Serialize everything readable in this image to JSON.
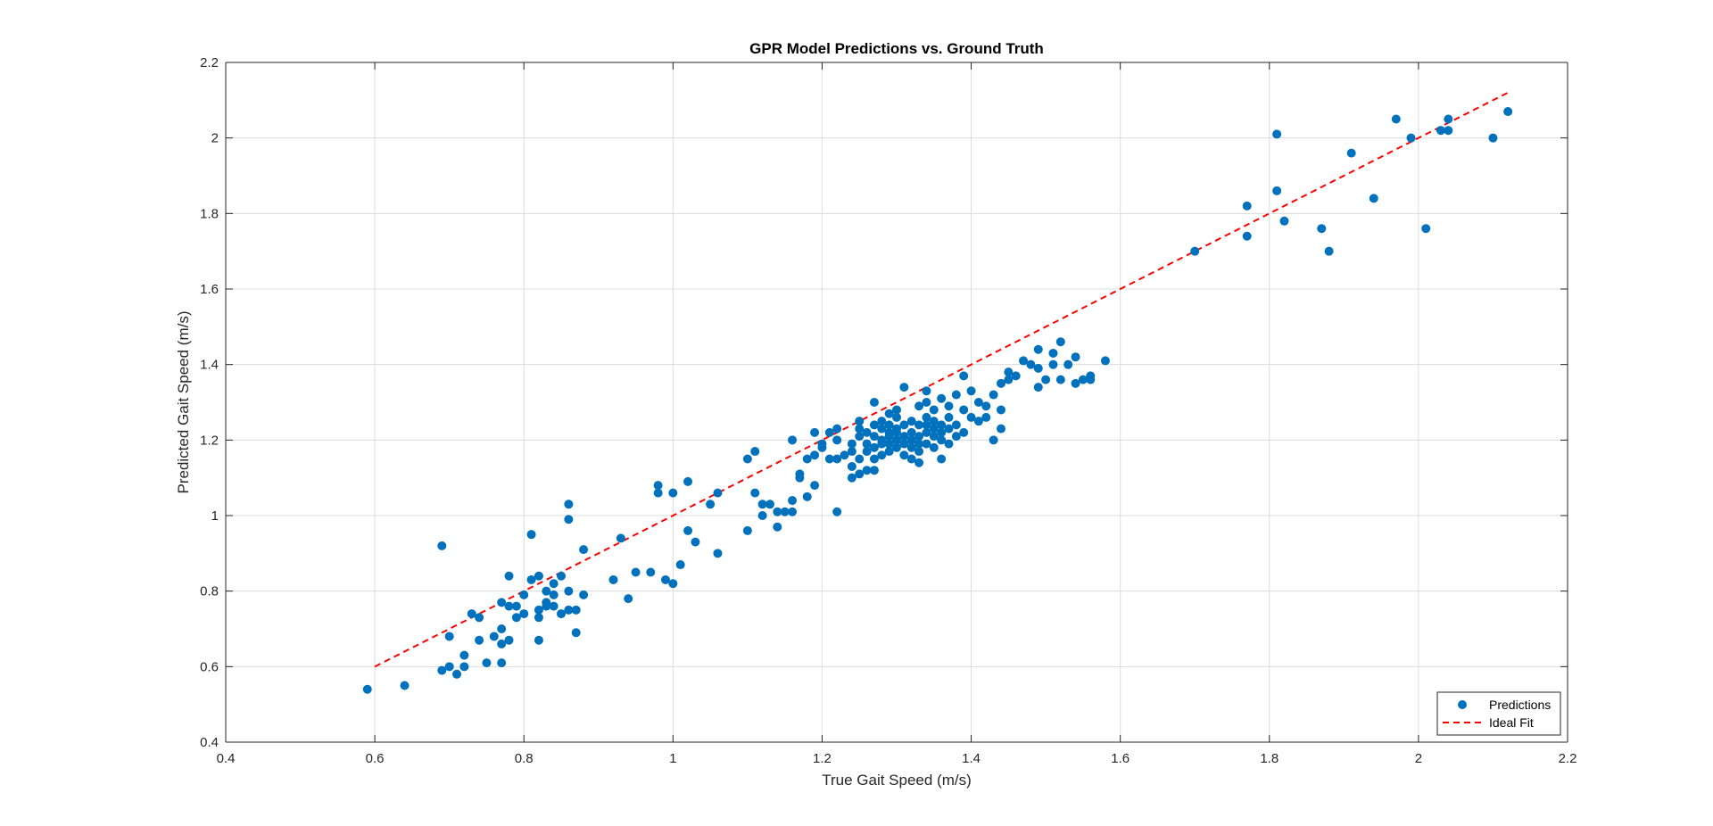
{
  "chart_data": {
    "type": "scatter",
    "title": "GPR Model Predictions vs. Ground Truth",
    "xlabel": "True Gait Speed (m/s)",
    "ylabel": "Predicted Gait Speed (m/s)",
    "xlim": [
      0.4,
      2.2
    ],
    "ylim": [
      0.4,
      2.2
    ],
    "xticks": [
      0.4,
      0.6,
      0.8,
      1,
      1.2,
      1.4,
      1.6,
      1.8,
      2,
      2.2
    ],
    "yticks": [
      0.4,
      0.6,
      0.8,
      1,
      1.2,
      1.4,
      1.6,
      1.8,
      2,
      2.2
    ],
    "xtick_labels": [
      "0.4",
      "0.6",
      "0.8",
      "1",
      "1.2",
      "1.4",
      "1.6",
      "1.8",
      "2",
      "2.2"
    ],
    "ytick_labels": [
      "0.4",
      "0.6",
      "0.8",
      "1",
      "1.2",
      "1.4",
      "1.6",
      "1.8",
      "2",
      "2.2"
    ],
    "grid": true,
    "legend_position": "bottom-right",
    "colors": {
      "predictions": "#0072BD",
      "ideal_fit": "#FF0000",
      "grid": "#dcdcdc",
      "axis": "#262626"
    },
    "series": [
      {
        "name": "Predictions",
        "style": "marker",
        "points": [
          [
            0.59,
            0.54
          ],
          [
            0.64,
            0.55
          ],
          [
            0.69,
            0.59
          ],
          [
            0.69,
            0.92
          ],
          [
            0.7,
            0.6
          ],
          [
            0.7,
            0.68
          ],
          [
            0.71,
            0.58
          ],
          [
            0.72,
            0.6
          ],
          [
            0.72,
            0.63
          ],
          [
            0.73,
            0.74
          ],
          [
            0.74,
            0.67
          ],
          [
            0.74,
            0.73
          ],
          [
            0.75,
            0.61
          ],
          [
            0.76,
            0.68
          ],
          [
            0.77,
            0.61
          ],
          [
            0.77,
            0.66
          ],
          [
            0.77,
            0.7
          ],
          [
            0.77,
            0.77
          ],
          [
            0.78,
            0.67
          ],
          [
            0.78,
            0.76
          ],
          [
            0.78,
            0.84
          ],
          [
            0.79,
            0.73
          ],
          [
            0.79,
            0.76
          ],
          [
            0.8,
            0.74
          ],
          [
            0.8,
            0.79
          ],
          [
            0.81,
            0.95
          ],
          [
            0.81,
            0.83
          ],
          [
            0.82,
            0.67
          ],
          [
            0.82,
            0.73
          ],
          [
            0.82,
            0.75
          ],
          [
            0.82,
            0.84
          ],
          [
            0.83,
            0.77
          ],
          [
            0.83,
            0.8
          ],
          [
            0.83,
            0.76
          ],
          [
            0.84,
            0.76
          ],
          [
            0.84,
            0.79
          ],
          [
            0.84,
            0.82
          ],
          [
            0.85,
            0.74
          ],
          [
            0.85,
            0.84
          ],
          [
            0.86,
            0.75
          ],
          [
            0.86,
            0.8
          ],
          [
            0.86,
            1.03
          ],
          [
            0.86,
            0.99
          ],
          [
            0.87,
            0.69
          ],
          [
            0.87,
            0.75
          ],
          [
            0.88,
            0.79
          ],
          [
            0.88,
            0.91
          ],
          [
            0.92,
            0.83
          ],
          [
            0.93,
            0.94
          ],
          [
            0.94,
            0.78
          ],
          [
            0.95,
            0.85
          ],
          [
            0.97,
            0.85
          ],
          [
            0.98,
            1.06
          ],
          [
            0.98,
            1.08
          ],
          [
            0.99,
            0.83
          ],
          [
            1.0,
            0.82
          ],
          [
            1.0,
            1.06
          ],
          [
            1.01,
            0.87
          ],
          [
            1.02,
            0.96
          ],
          [
            1.02,
            1.09
          ],
          [
            1.03,
            0.93
          ],
          [
            1.05,
            1.03
          ],
          [
            1.06,
            0.9
          ],
          [
            1.06,
            1.06
          ],
          [
            1.1,
            0.96
          ],
          [
            1.1,
            1.15
          ],
          [
            1.11,
            1.06
          ],
          [
            1.11,
            1.17
          ],
          [
            1.12,
            1.0
          ],
          [
            1.12,
            1.03
          ],
          [
            1.13,
            1.03
          ],
          [
            1.14,
            0.97
          ],
          [
            1.14,
            1.01
          ],
          [
            1.15,
            1.01
          ],
          [
            1.16,
            1.01
          ],
          [
            1.16,
            1.04
          ],
          [
            1.16,
            1.2
          ],
          [
            1.17,
            1.1
          ],
          [
            1.17,
            1.11
          ],
          [
            1.18,
            1.05
          ],
          [
            1.18,
            1.15
          ],
          [
            1.19,
            1.08
          ],
          [
            1.19,
            1.16
          ],
          [
            1.19,
            1.22
          ],
          [
            1.2,
            1.18
          ],
          [
            1.2,
            1.19
          ],
          [
            1.21,
            1.15
          ],
          [
            1.21,
            1.22
          ],
          [
            1.22,
            1.01
          ],
          [
            1.22,
            1.15
          ],
          [
            1.22,
            1.2
          ],
          [
            1.22,
            1.23
          ],
          [
            1.23,
            1.16
          ],
          [
            1.24,
            1.1
          ],
          [
            1.24,
            1.13
          ],
          [
            1.24,
            1.17
          ],
          [
            1.24,
            1.19
          ],
          [
            1.25,
            1.11
          ],
          [
            1.25,
            1.15
          ],
          [
            1.25,
            1.21
          ],
          [
            1.25,
            1.23
          ],
          [
            1.25,
            1.25
          ],
          [
            1.26,
            1.12
          ],
          [
            1.26,
            1.17
          ],
          [
            1.26,
            1.19
          ],
          [
            1.26,
            1.22
          ],
          [
            1.27,
            1.12
          ],
          [
            1.27,
            1.15
          ],
          [
            1.27,
            1.18
          ],
          [
            1.27,
            1.21
          ],
          [
            1.27,
            1.24
          ],
          [
            1.27,
            1.3
          ],
          [
            1.28,
            1.16
          ],
          [
            1.28,
            1.19
          ],
          [
            1.28,
            1.2
          ],
          [
            1.28,
            1.23
          ],
          [
            1.28,
            1.25
          ],
          [
            1.29,
            1.17
          ],
          [
            1.29,
            1.19
          ],
          [
            1.29,
            1.21
          ],
          [
            1.29,
            1.22
          ],
          [
            1.29,
            1.24
          ],
          [
            1.29,
            1.27
          ],
          [
            1.3,
            1.18
          ],
          [
            1.3,
            1.2
          ],
          [
            1.3,
            1.22
          ],
          [
            1.3,
            1.23
          ],
          [
            1.3,
            1.26
          ],
          [
            1.3,
            1.28
          ],
          [
            1.31,
            1.16
          ],
          [
            1.31,
            1.19
          ],
          [
            1.31,
            1.21
          ],
          [
            1.31,
            1.24
          ],
          [
            1.31,
            1.34
          ],
          [
            1.32,
            1.15
          ],
          [
            1.32,
            1.18
          ],
          [
            1.32,
            1.2
          ],
          [
            1.32,
            1.22
          ],
          [
            1.32,
            1.25
          ],
          [
            1.33,
            1.14
          ],
          [
            1.33,
            1.17
          ],
          [
            1.33,
            1.19
          ],
          [
            1.33,
            1.21
          ],
          [
            1.33,
            1.24
          ],
          [
            1.33,
            1.29
          ],
          [
            1.34,
            1.19
          ],
          [
            1.34,
            1.22
          ],
          [
            1.34,
            1.24
          ],
          [
            1.34,
            1.26
          ],
          [
            1.34,
            1.3
          ],
          [
            1.34,
            1.33
          ],
          [
            1.35,
            1.18
          ],
          [
            1.35,
            1.21
          ],
          [
            1.35,
            1.23
          ],
          [
            1.35,
            1.25
          ],
          [
            1.35,
            1.28
          ],
          [
            1.36,
            1.15
          ],
          [
            1.36,
            1.2
          ],
          [
            1.36,
            1.22
          ],
          [
            1.36,
            1.24
          ],
          [
            1.36,
            1.31
          ],
          [
            1.37,
            1.19
          ],
          [
            1.37,
            1.23
          ],
          [
            1.37,
            1.26
          ],
          [
            1.37,
            1.29
          ],
          [
            1.38,
            1.21
          ],
          [
            1.38,
            1.24
          ],
          [
            1.38,
            1.32
          ],
          [
            1.39,
            1.22
          ],
          [
            1.39,
            1.28
          ],
          [
            1.39,
            1.37
          ],
          [
            1.4,
            1.26
          ],
          [
            1.4,
            1.33
          ],
          [
            1.41,
            1.25
          ],
          [
            1.41,
            1.3
          ],
          [
            1.42,
            1.26
          ],
          [
            1.42,
            1.29
          ],
          [
            1.43,
            1.2
          ],
          [
            1.43,
            1.32
          ],
          [
            1.44,
            1.23
          ],
          [
            1.44,
            1.28
          ],
          [
            1.44,
            1.35
          ],
          [
            1.45,
            1.36
          ],
          [
            1.45,
            1.38
          ],
          [
            1.46,
            1.37
          ],
          [
            1.47,
            1.41
          ],
          [
            1.48,
            1.4
          ],
          [
            1.49,
            1.34
          ],
          [
            1.49,
            1.39
          ],
          [
            1.49,
            1.44
          ],
          [
            1.5,
            1.36
          ],
          [
            1.51,
            1.4
          ],
          [
            1.51,
            1.43
          ],
          [
            1.52,
            1.36
          ],
          [
            1.52,
            1.46
          ],
          [
            1.53,
            1.4
          ],
          [
            1.54,
            1.35
          ],
          [
            1.54,
            1.42
          ],
          [
            1.55,
            1.36
          ],
          [
            1.56,
            1.36
          ],
          [
            1.56,
            1.37
          ],
          [
            1.58,
            1.41
          ],
          [
            1.7,
            1.7
          ],
          [
            1.77,
            1.74
          ],
          [
            1.77,
            1.82
          ],
          [
            1.81,
            1.86
          ],
          [
            1.81,
            2.01
          ],
          [
            1.82,
            1.78
          ],
          [
            1.87,
            1.76
          ],
          [
            1.88,
            1.7
          ],
          [
            1.91,
            1.96
          ],
          [
            1.94,
            1.84
          ],
          [
            1.97,
            2.05
          ],
          [
            1.99,
            2.0
          ],
          [
            2.01,
            1.76
          ],
          [
            2.03,
            2.02
          ],
          [
            2.04,
            2.05
          ],
          [
            2.04,
            2.02
          ],
          [
            2.1,
            2.0
          ],
          [
            2.12,
            2.07
          ]
        ]
      },
      {
        "name": "Ideal Fit",
        "style": "dashed-line",
        "points": [
          [
            0.6,
            0.6
          ],
          [
            2.12,
            2.12
          ]
        ]
      }
    ]
  }
}
